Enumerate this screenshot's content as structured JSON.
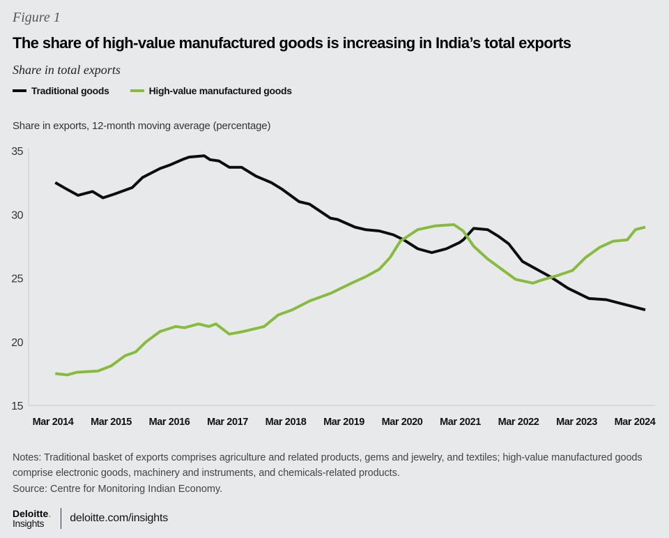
{
  "figure_label": "Figure 1",
  "title": "The share of high-value manufactured goods is increasing in India’s total exports",
  "subtitle": "Share in total exports",
  "legend": [
    {
      "label": "Traditional goods",
      "color": "#0d0d0d"
    },
    {
      "label": "High-value manufactured goods",
      "color": "#86bc3d"
    }
  ],
  "notes": "Notes: Traditional basket of exports comprises agriculture and related products, gems and jewelry, and textiles; high-value manufactured goods comprise electronic goods, machinery and instruments, and chemicals-related products.",
  "source": "Source: Centre for Monitoring Indian Economy.",
  "footer": {
    "brand_top": "Deloitte",
    "brand_dot": ".",
    "brand_bottom": "Insights",
    "url": "deloitte.com/insights"
  },
  "chart_data": {
    "type": "line",
    "title": "The share of high-value manufactured goods is increasing in India’s total exports",
    "subtitle": "Share in total exports",
    "xlabel": "",
    "ylabel": "Share in exports, 12-month moving average (percentage)",
    "ylim": [
      15,
      35
    ],
    "yticks": [
      "15",
      "20",
      "25",
      "30",
      "35"
    ],
    "xlim": [
      2014.17,
      2024.6
    ],
    "xticks": [
      {
        "label": "Mar 2014",
        "x": 2014.17
      },
      {
        "label": "Mar 2015",
        "x": 2015.17
      },
      {
        "label": "Mar 2016",
        "x": 2016.17
      },
      {
        "label": "Mar 2017",
        "x": 2017.17
      },
      {
        "label": "Mar 2018",
        "x": 2018.17
      },
      {
        "label": "Mar 2019",
        "x": 2019.17
      },
      {
        "label": "Mar 2020",
        "x": 2020.17
      },
      {
        "label": "Mar 2021",
        "x": 2021.17
      },
      {
        "label": "Mar 2022",
        "x": 2022.17
      },
      {
        "label": "Mar 2023",
        "x": 2023.17
      },
      {
        "label": "Mar 2024",
        "x": 2024.17
      }
    ],
    "grid": false,
    "legend_position": "top-left",
    "series": [
      {
        "name": "Traditional goods",
        "color": "#0d0d0d",
        "x": [
          2014.21,
          2014.4,
          2014.6,
          2014.85,
          2015.03,
          2015.23,
          2015.53,
          2015.71,
          2016.01,
          2016.19,
          2016.39,
          2016.51,
          2016.77,
          2016.87,
          2017.02,
          2017.2,
          2017.41,
          2017.66,
          2017.92,
          2018.1,
          2018.4,
          2018.58,
          2018.94,
          2019.06,
          2019.36,
          2019.54,
          2019.78,
          2020.02,
          2020.2,
          2020.44,
          2020.68,
          2020.93,
          2021.16,
          2021.22,
          2021.4,
          2021.64,
          2021.82,
          2022.0,
          2022.24,
          2022.48,
          2022.72,
          2023.02,
          2023.38,
          2023.68,
          2024.1,
          2024.35
        ],
        "values": [
          32.5,
          32.0,
          31.5,
          31.8,
          31.3,
          31.6,
          32.1,
          32.9,
          33.6,
          33.9,
          34.3,
          34.5,
          34.6,
          34.3,
          34.2,
          33.7,
          33.7,
          33.0,
          32.5,
          32.0,
          31.0,
          30.8,
          29.7,
          29.6,
          29.0,
          28.8,
          28.7,
          28.4,
          28.0,
          27.3,
          27.0,
          27.3,
          27.8,
          28.0,
          28.9,
          28.8,
          28.3,
          27.7,
          26.3,
          25.7,
          25.1,
          24.2,
          23.4,
          23.3,
          22.8,
          22.5
        ]
      },
      {
        "name": "High-value manufactured goods",
        "color": "#86bc3d",
        "x": [
          2014.21,
          2014.42,
          2014.58,
          2014.94,
          2015.17,
          2015.41,
          2015.59,
          2015.77,
          2016.01,
          2016.28,
          2016.43,
          2016.67,
          2016.85,
          2016.97,
          2017.2,
          2017.44,
          2017.8,
          2018.04,
          2018.28,
          2018.58,
          2018.94,
          2019.3,
          2019.54,
          2019.78,
          2019.96,
          2020.14,
          2020.44,
          2020.74,
          2021.06,
          2021.22,
          2021.4,
          2021.64,
          2021.88,
          2022.12,
          2022.42,
          2022.54,
          2022.84,
          2023.1,
          2023.32,
          2023.56,
          2023.8,
          2024.04,
          2024.18,
          2024.35
        ],
        "values": [
          17.5,
          17.4,
          17.6,
          17.7,
          18.1,
          18.9,
          19.2,
          20.0,
          20.8,
          21.2,
          21.1,
          21.4,
          21.2,
          21.4,
          20.6,
          20.8,
          21.2,
          22.1,
          22.5,
          23.2,
          23.8,
          24.6,
          25.1,
          25.7,
          26.6,
          27.9,
          28.8,
          29.1,
          29.2,
          28.7,
          27.5,
          26.5,
          25.7,
          24.9,
          24.6,
          24.8,
          25.2,
          25.6,
          26.6,
          27.4,
          27.9,
          28.0,
          28.8,
          29.0
        ]
      }
    ]
  }
}
